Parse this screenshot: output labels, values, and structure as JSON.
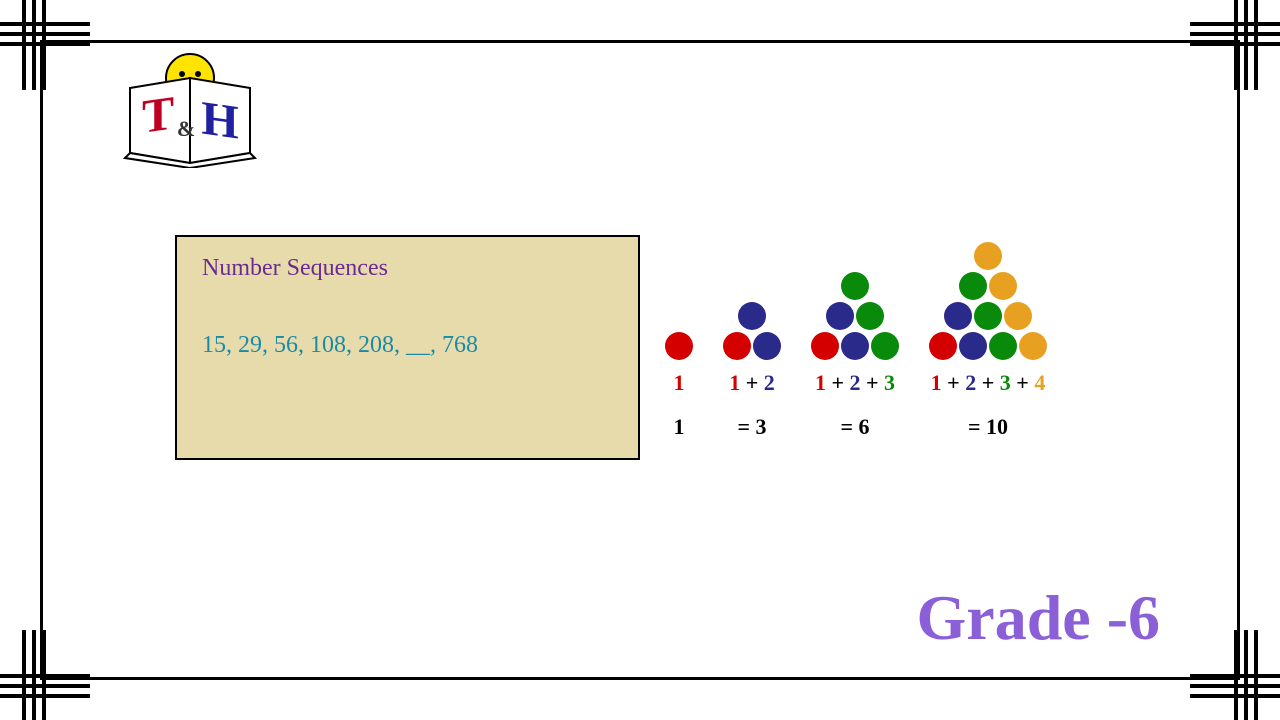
{
  "logo": {
    "letter_t": "T",
    "amp": "&",
    "letter_h": "H"
  },
  "card": {
    "bg": "#e8dbab",
    "title": "Number Sequences",
    "title_color": "#6a2c91",
    "sequence": "15, 29, 56, 108, 208, __, 768",
    "sequence_color": "#1b8aa5"
  },
  "colors": {
    "red": "#d40000",
    "blue": "#2a2a8a",
    "green": "#0a8a0a",
    "orange": "#e8a020",
    "black": "#000000"
  },
  "triangular": [
    {
      "rows": [
        [
          "red"
        ]
      ],
      "parts": [
        {
          "t": "1",
          "c": "red"
        }
      ],
      "result": "1"
    },
    {
      "rows": [
        [
          "blue"
        ],
        [
          "red",
          "blue"
        ]
      ],
      "parts": [
        {
          "t": "1",
          "c": "red"
        },
        {
          "t": " + ",
          "c": "black"
        },
        {
          "t": "2",
          "c": "blue"
        }
      ],
      "result": "= 3"
    },
    {
      "rows": [
        [
          "green"
        ],
        [
          "blue",
          "green"
        ],
        [
          "red",
          "blue",
          "green"
        ]
      ],
      "parts": [
        {
          "t": "1",
          "c": "red"
        },
        {
          "t": " + ",
          "c": "black"
        },
        {
          "t": "2",
          "c": "blue"
        },
        {
          "t": " + ",
          "c": "black"
        },
        {
          "t": "3",
          "c": "green"
        }
      ],
      "result": "= 6"
    },
    {
      "rows": [
        [
          "orange"
        ],
        [
          "green",
          "orange"
        ],
        [
          "blue",
          "green",
          "orange"
        ],
        [
          "red",
          "blue",
          "green",
          "orange"
        ]
      ],
      "parts": [
        {
          "t": "1",
          "c": "red"
        },
        {
          "t": " + ",
          "c": "black"
        },
        {
          "t": "2",
          "c": "blue"
        },
        {
          "t": " + ",
          "c": "black"
        },
        {
          "t": "3",
          "c": "green"
        },
        {
          "t": " + ",
          "c": "black"
        },
        {
          "t": "4",
          "c": "orange"
        }
      ],
      "result": "= 10"
    }
  ],
  "grade": {
    "text": "Grade -6",
    "color": "#8a5fd8"
  }
}
